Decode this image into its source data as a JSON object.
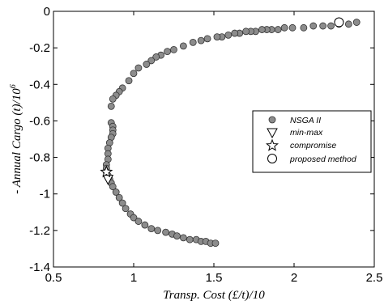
{
  "chart_data": {
    "type": "scatter",
    "title": "",
    "xlabel": "Transp. Cost (£/t)/10",
    "ylabel_main": "- Annual Cargo (t)/10",
    "ylabel_exp": "6",
    "xlim": [
      0.5,
      2.5
    ],
    "ylim": [
      -1.4,
      0
    ],
    "xticks": [
      0.5,
      1,
      1.5,
      2,
      2.5
    ],
    "xtick_labels": [
      "0.5",
      "1",
      "1.5",
      "2",
      "2.5"
    ],
    "yticks": [
      0,
      -0.2,
      -0.4,
      -0.6,
      -0.8,
      -1,
      -1.2,
      -1.4
    ],
    "ytick_labels": [
      "0",
      "-0.2",
      "-0.4",
      "-0.6",
      "-0.8",
      "-1",
      "-1.2",
      "-1.4"
    ],
    "grid": false,
    "legend_position": "right",
    "series": [
      {
        "name": "NSGA II",
        "marker": "circle-filled",
        "color": "#8c8c8c",
        "points": [
          [
            2.39,
            -0.06
          ],
          [
            2.34,
            -0.07
          ],
          [
            2.28,
            -0.07
          ],
          [
            2.23,
            -0.08
          ],
          [
            2.18,
            -0.08
          ],
          [
            2.12,
            -0.08
          ],
          [
            2.06,
            -0.09
          ],
          [
            1.99,
            -0.09
          ],
          [
            1.94,
            -0.09
          ],
          [
            1.9,
            -0.1
          ],
          [
            1.86,
            -0.1
          ],
          [
            1.83,
            -0.1
          ],
          [
            1.8,
            -0.1
          ],
          [
            1.76,
            -0.11
          ],
          [
            1.73,
            -0.11
          ],
          [
            1.7,
            -0.11
          ],
          [
            1.66,
            -0.12
          ],
          [
            1.63,
            -0.12
          ],
          [
            1.59,
            -0.13
          ],
          [
            1.55,
            -0.14
          ],
          [
            1.52,
            -0.14
          ],
          [
            1.46,
            -0.15
          ],
          [
            1.42,
            -0.16
          ],
          [
            1.37,
            -0.17
          ],
          [
            1.31,
            -0.19
          ],
          [
            1.25,
            -0.21
          ],
          [
            1.21,
            -0.22
          ],
          [
            1.17,
            -0.24
          ],
          [
            1.14,
            -0.25
          ],
          [
            1.11,
            -0.27
          ],
          [
            1.08,
            -0.29
          ],
          [
            1.03,
            -0.31
          ],
          [
            1.0,
            -0.34
          ],
          [
            0.97,
            -0.38
          ],
          [
            0.93,
            -0.42
          ],
          [
            0.91,
            -0.44
          ],
          [
            0.89,
            -0.46
          ],
          [
            0.87,
            -0.48
          ],
          [
            0.86,
            -0.52
          ],
          [
            0.86,
            -0.61
          ],
          [
            0.87,
            -0.63
          ],
          [
            0.87,
            -0.65
          ],
          [
            0.87,
            -0.67
          ],
          [
            0.86,
            -0.69
          ],
          [
            0.85,
            -0.72
          ],
          [
            0.84,
            -0.75
          ],
          [
            0.84,
            -0.78
          ],
          [
            0.84,
            -0.81
          ],
          [
            0.83,
            -0.84
          ],
          [
            0.83,
            -0.86
          ],
          [
            0.83,
            -0.88
          ],
          [
            0.84,
            -0.9
          ],
          [
            0.85,
            -0.92
          ],
          [
            0.86,
            -0.94
          ],
          [
            0.87,
            -0.96
          ],
          [
            0.89,
            -0.99
          ],
          [
            0.91,
            -1.02
          ],
          [
            0.93,
            -1.05
          ],
          [
            0.95,
            -1.08
          ],
          [
            0.98,
            -1.11
          ],
          [
            1.0,
            -1.13
          ],
          [
            1.03,
            -1.15
          ],
          [
            1.07,
            -1.17
          ],
          [
            1.11,
            -1.19
          ],
          [
            1.15,
            -1.2
          ],
          [
            1.2,
            -1.21
          ],
          [
            1.24,
            -1.22
          ],
          [
            1.27,
            -1.23
          ],
          [
            1.31,
            -1.24
          ],
          [
            1.35,
            -1.25
          ],
          [
            1.39,
            -1.25
          ],
          [
            1.42,
            -1.26
          ],
          [
            1.45,
            -1.26
          ],
          [
            1.48,
            -1.27
          ],
          [
            1.51,
            -1.27
          ]
        ]
      },
      {
        "name": "min-max",
        "marker": "triangle-down-open",
        "points": [
          [
            0.84,
            -0.92
          ]
        ]
      },
      {
        "name": "compromise",
        "marker": "star-open",
        "points": [
          [
            0.83,
            -0.88
          ]
        ]
      },
      {
        "name": "proposed method",
        "marker": "circle-open",
        "points": [
          [
            2.28,
            -0.06
          ]
        ]
      }
    ]
  }
}
